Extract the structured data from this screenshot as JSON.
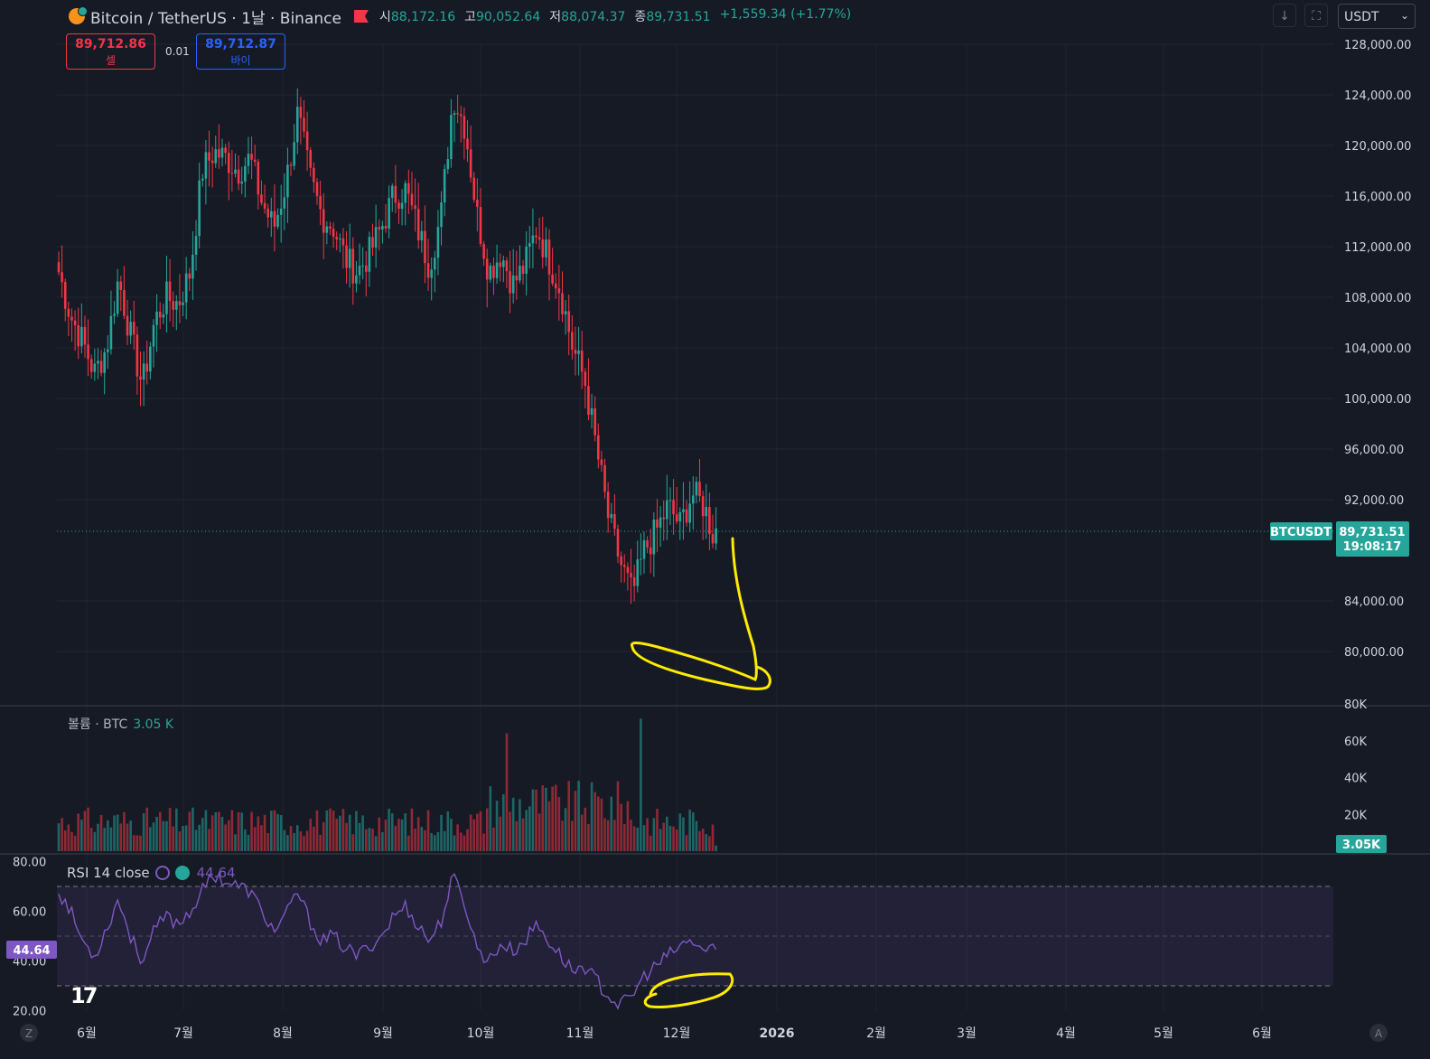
{
  "header": {
    "symbol": "Bitcoin / TetherUS · 1날 · Binance",
    "open_label": "시",
    "open": "88,172.16",
    "high_label": "고",
    "high": "90,052.64",
    "low_label": "저",
    "low": "88,074.37",
    "close_label": "종",
    "close": "89,731.51",
    "change": "+1,559.34 (+1.77%)"
  },
  "trade": {
    "sell_price": "89,712.86",
    "sell_label": "셀",
    "spread": "0.01",
    "buy_price": "89,712.87",
    "buy_label": "바이"
  },
  "toolbar": {
    "currency": "USDT",
    "currency_arrow": "⌄",
    "down_glyph": "↓",
    "fullscreen_glyph": "⛶"
  },
  "price_tag": {
    "symbol": "BTCUSDT",
    "price": "89,731.51",
    "countdown": "19:08:17"
  },
  "volume_legend": {
    "label": "볼륨 · BTC",
    "value": "3.05 K",
    "tag": "3.05K"
  },
  "rsi_legend": {
    "label": "RSI 14 close",
    "value": "44.64",
    "tag": "44.64"
  },
  "time_axis_buttons": {
    "left": "Z",
    "right": "A"
  },
  "logo_text": "17",
  "colors": {
    "background": "#161a25",
    "up": "#26a69a",
    "down": "#f23645",
    "rsi": "#7e57c2",
    "annotation": "#ffeb00"
  },
  "chart_data": [
    {
      "type": "candlestick",
      "title": "Bitcoin / TetherUS · 1날 · Binance",
      "y_ticks": [
        "128,000.00",
        "124,000.00",
        "120,000.00",
        "116,000.00",
        "112,000.00",
        "108,000.00",
        "104,000.00",
        "100,000.00",
        "96,000.00",
        "92,000.00",
        "84,000.00",
        "80,000.00"
      ],
      "x_ticks": [
        "6월",
        "7월",
        "8월",
        "9월",
        "10월",
        "11월",
        "12월",
        "2026",
        "2월",
        "3월",
        "4월",
        "5월",
        "6월"
      ],
      "ylim": [
        77000,
        129500
      ],
      "last_price": 89731.51,
      "approx_close_path": [
        [
          0,
          110000
        ],
        [
          5,
          106500
        ],
        [
          10,
          104500
        ],
        [
          15,
          102000
        ],
        [
          20,
          104000
        ],
        [
          25,
          109500
        ],
        [
          30,
          105000
        ],
        [
          35,
          101000
        ],
        [
          40,
          106000
        ],
        [
          45,
          108000
        ],
        [
          50,
          107500
        ],
        [
          55,
          110000
        ],
        [
          60,
          118000
        ],
        [
          65,
          119500
        ],
        [
          70,
          119000
        ],
        [
          75,
          118000
        ],
        [
          80,
          119000
        ],
        [
          85,
          115500
        ],
        [
          90,
          113500
        ],
        [
          95,
          117000
        ],
        [
          100,
          122500
        ],
        [
          105,
          117500
        ],
        [
          110,
          114500
        ],
        [
          115,
          113500
        ],
        [
          120,
          111000
        ],
        [
          125,
          110000
        ],
        [
          130,
          111500
        ],
        [
          135,
          113500
        ],
        [
          140,
          116000
        ],
        [
          145,
          116500
        ],
        [
          150,
          113500
        ],
        [
          155,
          110500
        ],
        [
          160,
          114500
        ],
        [
          165,
          124000
        ],
        [
          170,
          121500
        ],
        [
          175,
          114500
        ],
        [
          180,
          110000
        ],
        [
          185,
          111500
        ],
        [
          190,
          109000
        ],
        [
          195,
          110500
        ],
        [
          200,
          113500
        ],
        [
          205,
          111000
        ],
        [
          210,
          108500
        ],
        [
          215,
          104000
        ],
        [
          220,
          101500
        ],
        [
          225,
          96000
        ],
        [
          230,
          90500
        ],
        [
          235,
          87000
        ],
        [
          240,
          84500
        ],
        [
          245,
          88000
        ],
        [
          250,
          89500
        ],
        [
          255,
          91500
        ],
        [
          260,
          90000
        ],
        [
          265,
          92500
        ],
        [
          270,
          91500
        ],
        [
          275,
          88500
        ]
      ]
    },
    {
      "type": "bar",
      "title": "볼륨 · BTC",
      "y_ticks": [
        "80K",
        "60K",
        "40K",
        "20K"
      ],
      "ylim": [
        0,
        80000
      ],
      "last_value": "3.05K"
    },
    {
      "type": "line",
      "title": "RSI 14 close",
      "y_ticks": [
        "80.00",
        "60.00",
        "40.00",
        "20.00"
      ],
      "ylim": [
        20,
        80
      ],
      "band": [
        30,
        70
      ],
      "middle": 50,
      "last_value": 44.64,
      "approx_path": [
        [
          0,
          68
        ],
        [
          5,
          60
        ],
        [
          10,
          48
        ],
        [
          15,
          42
        ],
        [
          20,
          53
        ],
        [
          25,
          65
        ],
        [
          30,
          50
        ],
        [
          35,
          40
        ],
        [
          40,
          52
        ],
        [
          45,
          58
        ],
        [
          50,
          55
        ],
        [
          55,
          60
        ],
        [
          60,
          68
        ],
        [
          65,
          75
        ],
        [
          70,
          72
        ],
        [
          75,
          70
        ],
        [
          80,
          68
        ],
        [
          85,
          60
        ],
        [
          90,
          52
        ],
        [
          95,
          58
        ],
        [
          100,
          68
        ],
        [
          105,
          56
        ],
        [
          110,
          48
        ],
        [
          115,
          50
        ],
        [
          120,
          45
        ],
        [
          125,
          42
        ],
        [
          130,
          46
        ],
        [
          135,
          50
        ],
        [
          140,
          58
        ],
        [
          145,
          62
        ],
        [
          150,
          55
        ],
        [
          155,
          48
        ],
        [
          160,
          56
        ],
        [
          165,
          74
        ],
        [
          170,
          63
        ],
        [
          175,
          45
        ],
        [
          180,
          40
        ],
        [
          185,
          47
        ],
        [
          190,
          44
        ],
        [
          195,
          48
        ],
        [
          200,
          55
        ],
        [
          205,
          48
        ],
        [
          210,
          42
        ],
        [
          215,
          36
        ],
        [
          220,
          38
        ],
        [
          225,
          32
        ],
        [
          230,
          26
        ],
        [
          235,
          22
        ],
        [
          240,
          26
        ],
        [
          245,
          34
        ],
        [
          250,
          38
        ],
        [
          255,
          42
        ],
        [
          260,
          46
        ],
        [
          265,
          48
        ],
        [
          270,
          44
        ],
        [
          275,
          45
        ]
      ]
    }
  ]
}
